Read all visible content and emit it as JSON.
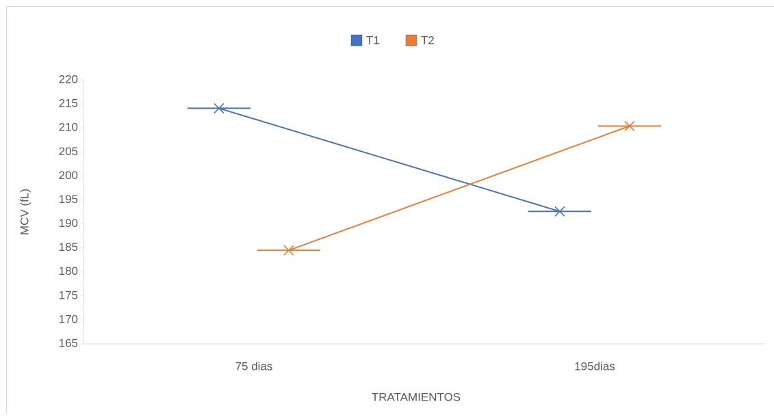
{
  "chart_data": {
    "type": "line",
    "x_label": "TRATAMIENTOS",
    "y_label": "MCV (fL)",
    "categories": [
      "75 dias",
      "195dias"
    ],
    "series": [
      {
        "name": "T1",
        "color": "#4472c4",
        "values": [
          214.1,
          192.6
        ]
      },
      {
        "name": "T2",
        "color": "#ed7d31",
        "values": [
          184.5,
          210.4
        ]
      }
    ],
    "ylim": [
      165,
      220
    ],
    "yticks": [
      165,
      170,
      175,
      180,
      185,
      190,
      195,
      200,
      205,
      210,
      215,
      220
    ],
    "grid": false,
    "legend": "top"
  }
}
